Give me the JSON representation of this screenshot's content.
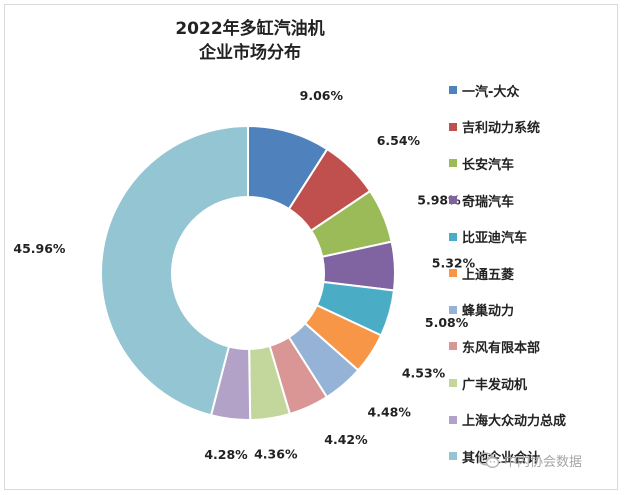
{
  "chart_data": {
    "type": "pie",
    "donut": true,
    "title_lines": [
      "2022年多缸汽油机",
      "企业市场分布"
    ],
    "legend_position": "right",
    "slices": [
      {
        "label": "一汽-大众",
        "value": 9.06,
        "value_label": "9.06%",
        "color": "#4f81bd"
      },
      {
        "label": "吉利动力系统",
        "value": 6.54,
        "value_label": "6.54%",
        "color": "#c0504d"
      },
      {
        "label": "长安汽车",
        "value": 5.98,
        "value_label": "5.98%",
        "color": "#9bbb59"
      },
      {
        "label": "奇瑞汽车",
        "value": 5.32,
        "value_label": "5.32%",
        "color": "#8064a2"
      },
      {
        "label": "比亚迪汽车",
        "value": 5.08,
        "value_label": "5.08%",
        "color": "#4bacc6"
      },
      {
        "label": "上通五菱",
        "value": 4.53,
        "value_label": "4.53%",
        "color": "#f79646"
      },
      {
        "label": "蜂巢动力",
        "value": 4.48,
        "value_label": "4.48%",
        "color": "#95b3d7"
      },
      {
        "label": "东风有限本部",
        "value": 4.42,
        "value_label": "4.42%",
        "color": "#d99694"
      },
      {
        "label": "广丰发动机",
        "value": 4.36,
        "value_label": "4.36%",
        "color": "#c3d69b"
      },
      {
        "label": "上海大众动力总成",
        "value": 4.28,
        "value_label": "4.28%",
        "color": "#b2a2c7"
      },
      {
        "label": "其他企业合计",
        "value": 45.96,
        "value_label": "45.96%",
        "color": "#93c5d3"
      }
    ]
  },
  "watermark": {
    "text": "中内协会数据",
    "icon": "wechat-icon"
  }
}
